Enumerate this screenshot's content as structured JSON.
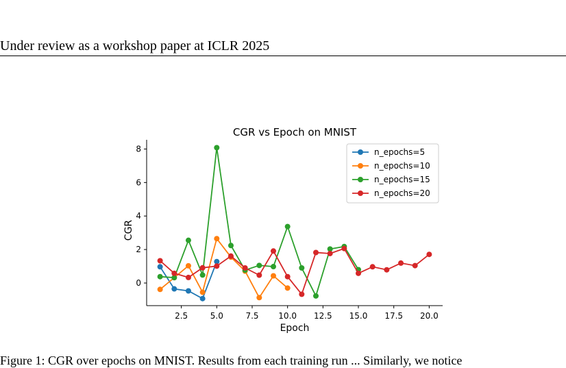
{
  "header": {
    "text": "Under review as a workshop paper at ICLR 2025"
  },
  "caption": {
    "text": "Figure 1:  CGR over epochs on MNIST. Results from each training run ... Similarly, we notice"
  },
  "chart_data": {
    "type": "line",
    "title": "CGR vs Epoch on MNIST",
    "xlabel": "Epoch",
    "ylabel": "CGR",
    "xlim": [
      0.05,
      20.95
    ],
    "ylim": [
      -1.35,
      8.55
    ],
    "xticks": [
      2.5,
      5.0,
      7.5,
      10.0,
      12.5,
      15.0,
      17.5,
      20.0
    ],
    "xtick_labels": [
      "2.5",
      "5.0",
      "7.5",
      "10.0",
      "12.5",
      "15.0",
      "17.5",
      "20.0"
    ],
    "yticks": [
      0,
      2,
      4,
      6,
      8
    ],
    "ytick_labels": [
      "0",
      "2",
      "4",
      "6",
      "8"
    ],
    "grid": false,
    "legend_position": "top-right",
    "series": [
      {
        "name": "n_epochs=5",
        "color": "#1f77b4",
        "x": [
          1,
          2,
          3,
          4,
          5
        ],
        "y": [
          0.97,
          -0.35,
          -0.47,
          -0.93,
          1.28
        ]
      },
      {
        "name": "n_epochs=10",
        "color": "#ff7f0e",
        "x": [
          1,
          2,
          3,
          4,
          5,
          6,
          7,
          8,
          9,
          10
        ],
        "y": [
          -0.38,
          0.32,
          1.03,
          -0.55,
          2.65,
          1.55,
          0.71,
          -0.87,
          0.43,
          -0.3
        ]
      },
      {
        "name": "n_epochs=15",
        "color": "#2ca02c",
        "x": [
          1,
          2,
          3,
          4,
          5,
          6,
          7,
          8,
          9,
          10,
          11,
          12,
          13,
          14,
          15
        ],
        "y": [
          0.38,
          0.32,
          2.55,
          0.48,
          8.08,
          2.24,
          0.77,
          1.05,
          0.98,
          3.37,
          0.9,
          -0.77,
          2.03,
          2.18,
          0.8
        ]
      },
      {
        "name": "n_epochs=20",
        "color": "#d62728",
        "x": [
          1,
          2,
          3,
          4,
          5,
          6,
          7,
          8,
          9,
          10,
          11,
          12,
          13,
          14,
          15,
          16,
          17,
          18,
          19,
          20
        ],
        "y": [
          1.33,
          0.58,
          0.33,
          0.91,
          1.01,
          1.61,
          0.9,
          0.47,
          1.91,
          0.38,
          -0.67,
          1.82,
          1.76,
          2.06,
          0.58,
          0.97,
          0.79,
          1.19,
          1.04,
          1.71
        ]
      }
    ]
  }
}
